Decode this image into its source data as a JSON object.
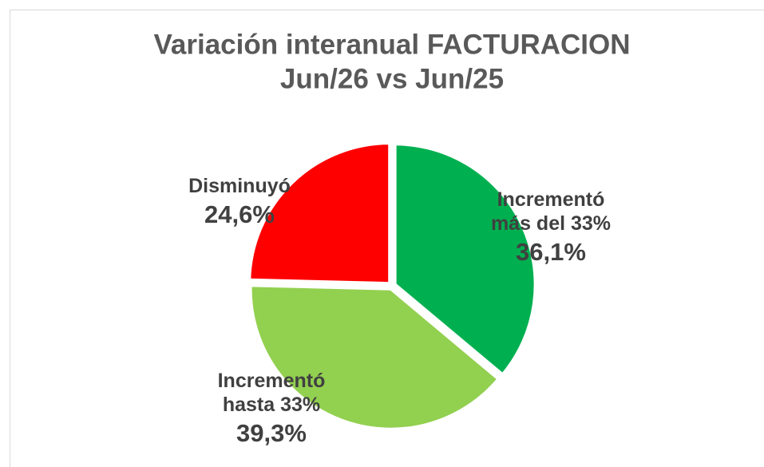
{
  "chart_data": {
    "type": "pie",
    "title": "Variación interanual FACTURACION",
    "subtitle": "Jun/26 vs Jun/25",
    "categories": [
      "Incrementó más del 33%",
      "Incrementó hasta 33%",
      "Disminuyó"
    ],
    "values": [
      36.1,
      39.3,
      24.6
    ],
    "value_labels": [
      "36,1%",
      "39,3%",
      "24,6%"
    ],
    "colors": [
      "#00b050",
      "#92d050",
      "#ff0000"
    ]
  }
}
